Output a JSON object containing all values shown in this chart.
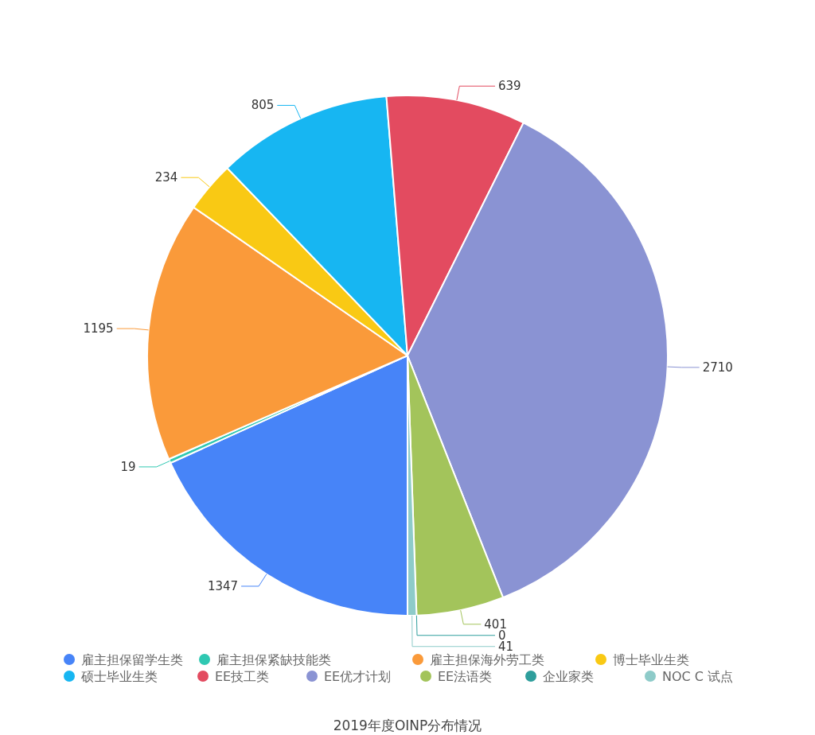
{
  "chart_data": {
    "type": "pie",
    "title": "2019年度OINP分布情况",
    "categories": [
      "雇主担保留学生类",
      "雇主担保紧缺技能类",
      "雇主担保海外劳工类",
      "博士毕业生类",
      "硕士毕业生类",
      "EE技工类",
      "EE优才计划",
      "EE法语类",
      "企业家类",
      "NOC C 试点"
    ],
    "values": [
      1347,
      19,
      1195,
      234,
      805,
      639,
      2710,
      401,
      0,
      41
    ],
    "colors": [
      "#4784f8",
      "#2fc8b2",
      "#fa9a3a",
      "#f9c914",
      "#17b6f2",
      "#e34b60",
      "#8a93d3",
      "#a3c45b",
      "#2e9e9c",
      "#8ecbc9"
    ],
    "value_labels": [
      "1347",
      "19",
      "1195",
      "234",
      "805",
      "639",
      "2710",
      "401",
      "0",
      "41"
    ],
    "legend": "bottom"
  }
}
